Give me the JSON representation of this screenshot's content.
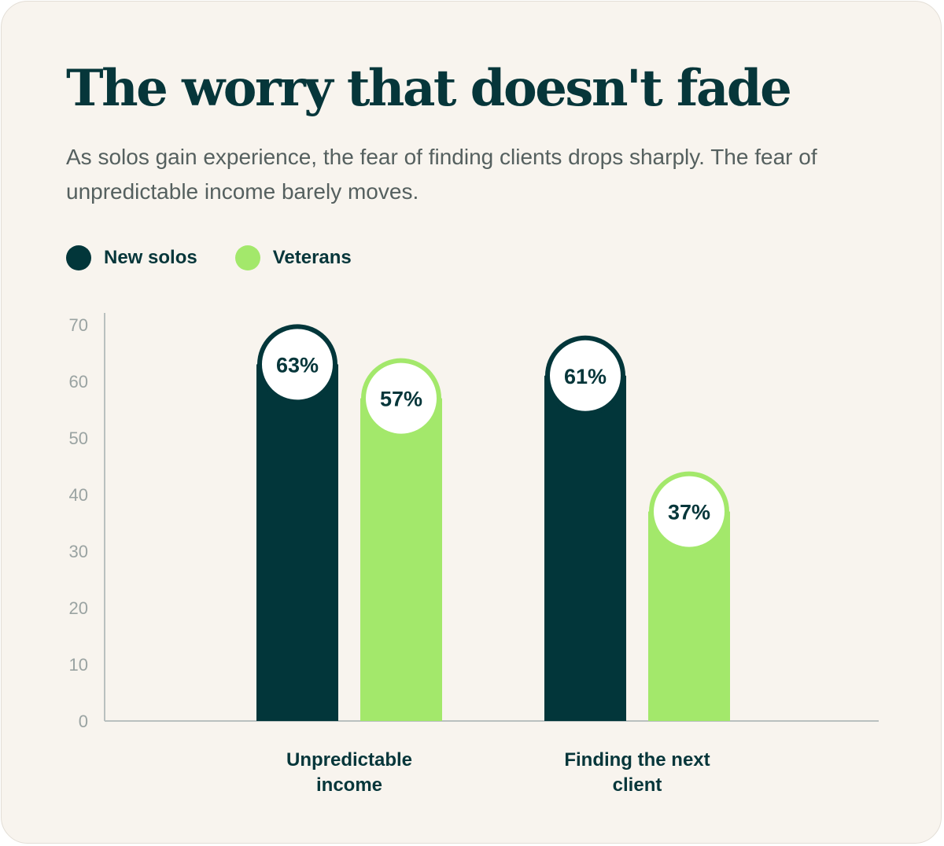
{
  "title": "The worry that doesn't fade",
  "subtitle": "As solos gain experience, the fear of finding clients drops sharply. The fear of unpredictable income barely moves.",
  "colors": {
    "new": "#02363a",
    "vet": "#a3e86b",
    "text": "#06363a",
    "axis": "#b9c0bf"
  },
  "chart_data": {
    "type": "bar",
    "categories": [
      [
        "Unpredictable",
        "income"
      ],
      [
        "Finding the next",
        "client"
      ]
    ],
    "series": [
      {
        "name": "New solos",
        "values": [
          63,
          61
        ],
        "labels": [
          "63%",
          "61%"
        ]
      },
      {
        "name": "Veterans",
        "values": [
          57,
          37
        ],
        "labels": [
          "57%",
          "37%"
        ]
      }
    ],
    "yticks": [
      "0",
      "10",
      "20",
      "30",
      "40",
      "50",
      "60",
      "70"
    ],
    "ylim": [
      0,
      72
    ],
    "legend": "top-left",
    "grid": false
  }
}
